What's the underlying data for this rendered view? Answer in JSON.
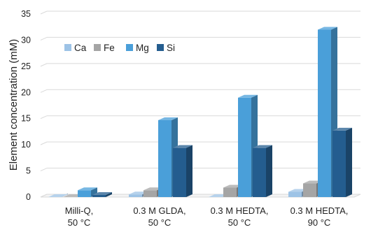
{
  "chart_data": {
    "type": "bar",
    "style": "3d-clustered-column",
    "ylabel": "Element concentration (mM)",
    "xlabel": "",
    "ylim": [
      0,
      35
    ],
    "yticks": [
      0,
      5,
      10,
      15,
      20,
      25,
      30,
      35
    ],
    "grid": true,
    "legend_position": "top-left",
    "categories": [
      [
        "Milli-Q,",
        "50 °C"
      ],
      [
        "0.3 M GLDA,",
        "50 °C"
      ],
      [
        "0.3 M HEDTA,",
        "50 °C"
      ],
      [
        "0.3 M HEDTA,",
        "90 °C"
      ]
    ],
    "series": [
      {
        "name": "Ca",
        "color": "#9dc3e6",
        "values": [
          0.0,
          0.5,
          0.0,
          1.0
        ]
      },
      {
        "name": "Fe",
        "color": "#a5a5a5",
        "values": [
          0.0,
          1.3,
          1.8,
          2.6
        ]
      },
      {
        "name": "Mg",
        "color": "#4a9fd9",
        "values": [
          1.3,
          14.7,
          19.0,
          32.0
        ]
      },
      {
        "name": "Si",
        "color": "#245d8f",
        "values": [
          0.4,
          9.4,
          9.4,
          12.7
        ]
      }
    ]
  }
}
